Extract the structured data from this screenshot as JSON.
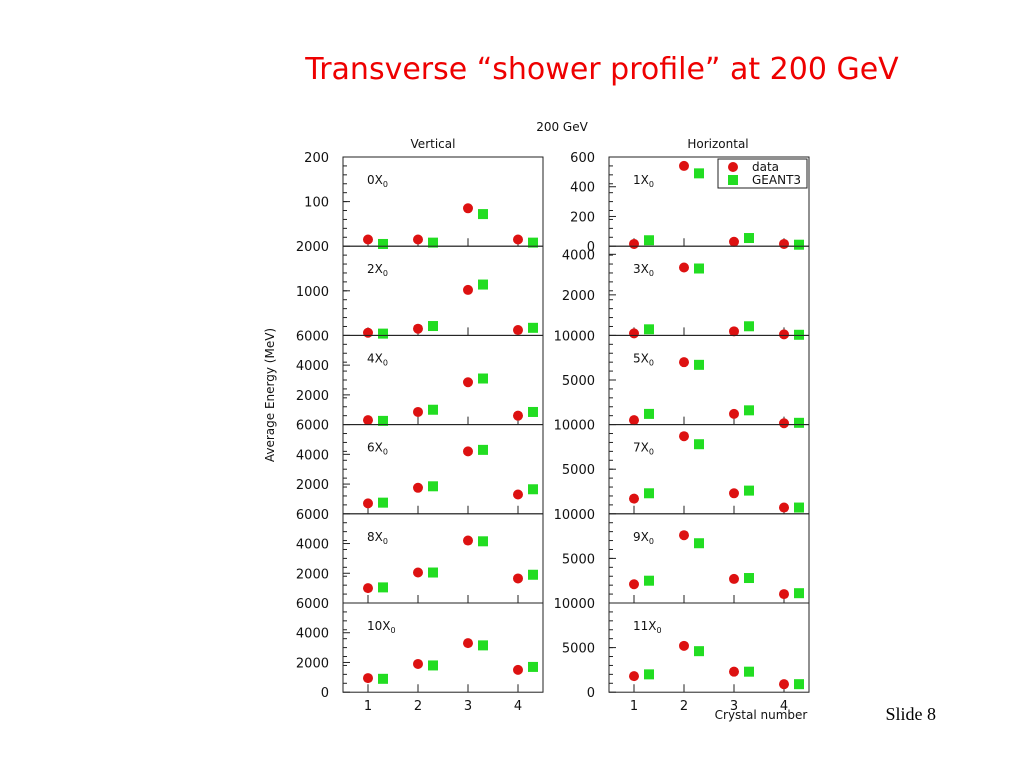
{
  "slide": {
    "title": "Transverse “shower profile” at 200 GeV",
    "title_color": "#ee0000",
    "number": "Slide 8"
  },
  "chart_data": {
    "type": "scatter",
    "title": "200 GeV",
    "column_titles": [
      "Vertical",
      "Horizontal"
    ],
    "ylabel": "Average Energy (MeV)",
    "xlabel": "Crystal number",
    "x_ticks": [
      "1",
      "2",
      "3",
      "4"
    ],
    "xlim": [
      0.5,
      4.5
    ],
    "x_offsets": {
      "data": 0,
      "GEANT3": 0.3
    },
    "legend": {
      "placement": "top-right of first Horizontal panel",
      "entries": [
        {
          "name": "data",
          "marker": "circle",
          "color": "#dd1111"
        },
        {
          "name": "GEANT3",
          "marker": "square",
          "color": "#22dd22"
        }
      ]
    },
    "panels": [
      {
        "label": "0",
        "column": "Vertical",
        "ylim": [
          0,
          200
        ],
        "y_ticks": [
          {
            "value": 100,
            "label": "100"
          },
          {
            "value": 200,
            "label": "200"
          }
        ],
        "data": [
          15,
          15,
          85,
          15
        ],
        "GEANT3": [
          5,
          8,
          72,
          8
        ]
      },
      {
        "label": "1",
        "column": "Horizontal",
        "ylim": [
          0,
          600
        ],
        "y_ticks": [
          {
            "value": 0,
            "label": "0"
          },
          {
            "value": 200,
            "label": "200"
          },
          {
            "value": 400,
            "label": "400"
          },
          {
            "value": 600,
            "label": "600"
          }
        ],
        "data": [
          15,
          540,
          30,
          15
        ],
        "GEANT3": [
          40,
          490,
          55,
          10
        ]
      },
      {
        "label": "2",
        "column": "Vertical",
        "ylim": [
          0,
          2000
        ],
        "y_ticks": [
          {
            "value": 1000,
            "label": "1000"
          },
          {
            "value": 2000,
            "label": "2000"
          }
        ],
        "data": [
          60,
          150,
          1020,
          120
        ],
        "GEANT3": [
          40,
          210,
          1140,
          170
        ]
      },
      {
        "label": "3",
        "column": "Horizontal",
        "ylim": [
          0,
          4400
        ],
        "y_ticks": [
          {
            "value": 2000,
            "label": "2000"
          },
          {
            "value": 4000,
            "label": "4000"
          }
        ],
        "data": [
          100,
          3350,
          200,
          50
        ],
        "GEANT3": [
          300,
          3300,
          450,
          30
        ]
      },
      {
        "label": "4",
        "column": "Vertical",
        "ylim": [
          0,
          6000
        ],
        "y_ticks": [
          {
            "value": 2000,
            "label": "2000"
          },
          {
            "value": 4000,
            "label": "4000"
          },
          {
            "value": 6000,
            "label": "6000"
          }
        ],
        "data": [
          300,
          850,
          2850,
          600
        ],
        "GEANT3": [
          250,
          1000,
          3100,
          850
        ]
      },
      {
        "label": "5",
        "column": "Horizontal",
        "ylim": [
          0,
          10000
        ],
        "y_ticks": [
          {
            "value": 5000,
            "label": "5000"
          },
          {
            "value": 10000,
            "label": "10000"
          }
        ],
        "data": [
          500,
          7000,
          1200,
          150
        ],
        "GEANT3": [
          1200,
          6700,
          1600,
          200
        ]
      },
      {
        "label": "6",
        "column": "Vertical",
        "ylim": [
          0,
          6000
        ],
        "y_ticks": [
          {
            "value": 2000,
            "label": "2000"
          },
          {
            "value": 4000,
            "label": "4000"
          },
          {
            "value": 6000,
            "label": "6000"
          }
        ],
        "data": [
          700,
          1750,
          4200,
          1300
        ],
        "GEANT3": [
          750,
          1850,
          4300,
          1650
        ]
      },
      {
        "label": "7",
        "column": "Horizontal",
        "ylim": [
          0,
          10000
        ],
        "y_ticks": [
          {
            "value": 5000,
            "label": "5000"
          },
          {
            "value": 10000,
            "label": "10000"
          }
        ],
        "data": [
          1700,
          8700,
          2300,
          700
        ],
        "GEANT3": [
          2300,
          7800,
          2600,
          700
        ]
      },
      {
        "label": "8",
        "column": "Vertical",
        "ylim": [
          0,
          6000
        ],
        "y_ticks": [
          {
            "value": 2000,
            "label": "2000"
          },
          {
            "value": 4000,
            "label": "4000"
          },
          {
            "value": 6000,
            "label": "6000"
          }
        ],
        "data": [
          1000,
          2050,
          4200,
          1650
        ],
        "GEANT3": [
          1050,
          2050,
          4150,
          1900
        ]
      },
      {
        "label": "9",
        "column": "Horizontal",
        "ylim": [
          0,
          10000
        ],
        "y_ticks": [
          {
            "value": 5000,
            "label": "5000"
          },
          {
            "value": 10000,
            "label": "10000"
          }
        ],
        "data": [
          2100,
          7600,
          2700,
          1000
        ],
        "GEANT3": [
          2500,
          6700,
          2800,
          1100
        ]
      },
      {
        "label": "10",
        "column": "Vertical",
        "ylim": [
          0,
          6000
        ],
        "y_ticks": [
          {
            "value": 0,
            "label": "0"
          },
          {
            "value": 2000,
            "label": "2000"
          },
          {
            "value": 4000,
            "label": "4000"
          },
          {
            "value": 6000,
            "label": "6000"
          }
        ],
        "data": [
          950,
          1900,
          3300,
          1500
        ],
        "GEANT3": [
          900,
          1800,
          3150,
          1700
        ]
      },
      {
        "label": "11",
        "column": "Horizontal",
        "ylim": [
          0,
          10000
        ],
        "y_ticks": [
          {
            "value": 0,
            "label": "0"
          },
          {
            "value": 5000,
            "label": "5000"
          },
          {
            "value": 10000,
            "label": "10000"
          }
        ],
        "data": [
          1800,
          5200,
          2300,
          900
        ],
        "GEANT3": [
          2000,
          4600,
          2300,
          900
        ]
      }
    ]
  }
}
